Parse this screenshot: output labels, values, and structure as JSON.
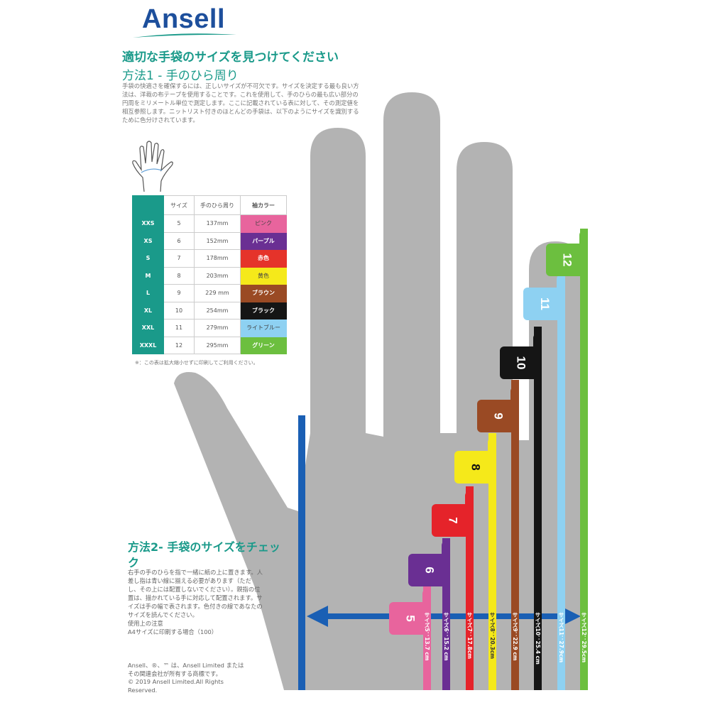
{
  "logo": "Ansell",
  "title": "適切な手袋のサイズを見つけてください",
  "method1": {
    "heading": "方法1 - 手のひら周り",
    "text": "手袋の快適さを確保するには、正しいサイズが不可欠です。サイズを決定する最も良い方法は、洋裁の布テープを使用することです。これを使用して、手のひらの最も広い部分の円周をミリメートル単位で測定します。ここに記載されている表に対して、その測定値を相互参照します。ニットリスト付きのほとんどの手袋は、以下のようにサイズを識別するために色分けされています。"
  },
  "table": {
    "headers": [
      "",
      "サイズ",
      "手のひら周り",
      "袖カラー"
    ],
    "rows": [
      {
        "code": "XXS",
        "size": "5",
        "palm": "137mm",
        "color": "ピンク",
        "hex": "#e8649d"
      },
      {
        "code": "XS",
        "size": "6",
        "palm": "152mm",
        "color": "パープル",
        "hex": "#6a2f93"
      },
      {
        "code": "S",
        "size": "7",
        "palm": "178mm",
        "color": "赤色",
        "hex": "#e5332a"
      },
      {
        "code": "M",
        "size": "8",
        "palm": "203mm",
        "color": "黄色",
        "hex": "#f5e91a"
      },
      {
        "code": "L",
        "size": "9",
        "palm": "229 mm",
        "color": "ブラウン",
        "hex": "#9a4a24"
      },
      {
        "code": "XL",
        "size": "10",
        "palm": "254mm",
        "color": "ブラック",
        "hex": "#151515"
      },
      {
        "code": "XXL",
        "size": "11",
        "palm": "279mm",
        "color": "ライトブルー",
        "hex": "#8ed1f2"
      },
      {
        "code": "XXXL",
        "size": "12",
        "palm": "295mm",
        "color": "グリーン",
        "hex": "#6cbf3f"
      }
    ],
    "note": "※：この表は拡大縮小せずに印刷してご利用ください。"
  },
  "method2": {
    "heading": "方法2- 手袋のサイズをチェック",
    "text": "右手の手のひらを指で一緒に紙の上に置きます。人差し指は青い線に揃える必要があります（ただし、その上には配置しないでください）。親指の位置は、描かれている手に対応して配置されます。サイズは手の幅で表されます。色付きの線であなたのサイズを読んでください。",
    "caution": "使用上の注意",
    "print": "A4サイズに印刷する場合（100）"
  },
  "footer": {
    "trademark": "Ansell、®、™ は、Ansell Limited またはその関連会社が所有する商標です。",
    "copyright": "© 2019 Ansell Limited.All Rights Reserved."
  },
  "bars": [
    {
      "num": "5",
      "label": "サイズ5：13.7 cm",
      "hex": "#e8649d"
    },
    {
      "num": "6",
      "label": "サイズ6：15.2 cm",
      "hex": "#6a2f93"
    },
    {
      "num": "7",
      "label": "サイズ7：17.8cm",
      "hex": "#e5232a"
    },
    {
      "num": "8",
      "label": "サイズ8：20.3cm",
      "hex": "#f5e91a"
    },
    {
      "num": "9",
      "label": "サイズ9：22.9 cm",
      "hex": "#9a4a24"
    },
    {
      "num": "10",
      "label": "サイズ10：25.4 cm",
      "hex": "#151515"
    },
    {
      "num": "11",
      "label": "サイズ11：27.9cm",
      "hex": "#8ed1f2"
    },
    {
      "num": "12",
      "label": "サイズ12：29.5cm",
      "hex": "#6cbf3f"
    }
  ],
  "colors": {
    "teal": "#1a9a8a",
    "hand": "#b3b3b3",
    "guide": "#1a5fb4",
    "logo": "#1d4f9c"
  }
}
